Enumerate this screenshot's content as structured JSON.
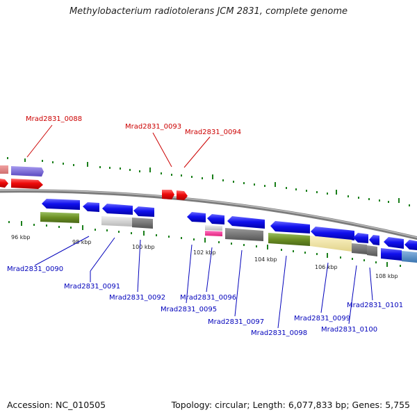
{
  "title": "Methylobacterium radiotolerans JCM 2831, complete genome",
  "footer": {
    "accession": "Accession: NC_010505",
    "summary": "Topology: circular; Length: 6,077,833 bp; Genes: 5,755"
  },
  "colors": {
    "backbone": "#8a8a8a",
    "tick": "#1a7f1a",
    "gene_red": "#e8080a",
    "gene_blue": "#1111ee",
    "label_red": "#cc0000",
    "label_blue": "#0000bb"
  },
  "ticks": [
    "96 kbp",
    "98 kbp",
    "100 kbp",
    "102 kbp",
    "104 kbp",
    "106 kbp",
    "108 kbp"
  ],
  "genes_top": [
    {
      "id": "Mrad2831_0088",
      "strand": "+"
    },
    {
      "id": "Mrad2831_0093",
      "strand": "+"
    },
    {
      "id": "Mrad2831_0094",
      "strand": "+"
    }
  ],
  "genes_bottom": [
    {
      "id": "Mrad2831_0090",
      "strand": "-"
    },
    {
      "id": "Mrad2831_0091",
      "strand": "-"
    },
    {
      "id": "Mrad2831_0092",
      "strand": "-"
    },
    {
      "id": "Mrad2831_0095",
      "strand": "-"
    },
    {
      "id": "Mrad2831_0096",
      "strand": "-"
    },
    {
      "id": "Mrad2831_0097",
      "strand": "-"
    },
    {
      "id": "Mrad2831_0098",
      "strand": "-"
    },
    {
      "id": "Mrad2831_0099",
      "strand": "-"
    },
    {
      "id": "Mrad2831_0100",
      "strand": "-"
    },
    {
      "id": "Mrad2831_0101",
      "strand": "-"
    }
  ]
}
